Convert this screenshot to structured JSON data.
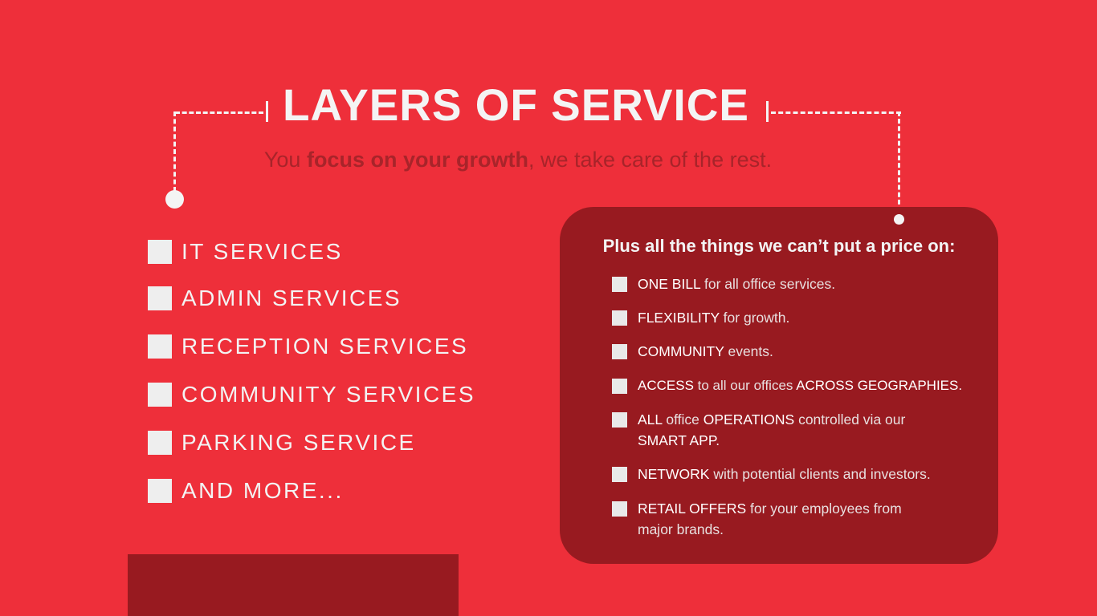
{
  "header": {
    "title": "LAYERS OF SERVICE",
    "subtitle": {
      "pre": "You ",
      "bold": "focus on your growth",
      "post": ", we take care of the rest."
    }
  },
  "services": [
    "IT SERVICES",
    "ADMIN SERVICES",
    "RECEPTION SERVICES",
    "COMMUNITY SERVICES",
    "PARKING SERVICE",
    "AND MORE..."
  ],
  "perks": {
    "heading": "Plus all the things we can’t put a price on:",
    "items": [
      [
        {
          "b": "ONE BILL"
        },
        {
          "n": " for all office services."
        }
      ],
      [
        {
          "b": "FLEXIBILITY"
        },
        {
          "n": " for growth."
        }
      ],
      [
        {
          "b": "COMMUNITY"
        },
        {
          "n": " events."
        }
      ],
      [
        {
          "b": "ACCESS"
        },
        {
          "n": " to all our offices "
        },
        {
          "b": "ACROSS GEOGRAPHIES."
        }
      ],
      [
        {
          "b": "ALL"
        },
        {
          "n": " office "
        },
        {
          "b": "OPERATIONS"
        },
        {
          "n": " controlled via our "
        },
        {
          "b": "SMART APP."
        }
      ],
      [
        {
          "b": "NETWORK"
        },
        {
          "n": " with potential clients and investors."
        }
      ],
      [
        {
          "b": "RETAIL OFFERS"
        },
        {
          "n": " for your employees from major brands."
        }
      ]
    ]
  },
  "colors": {
    "background": "#ee2f3a",
    "panel": "#981a20",
    "text": "#f4f4f4",
    "subtitle": "#a8242a"
  }
}
